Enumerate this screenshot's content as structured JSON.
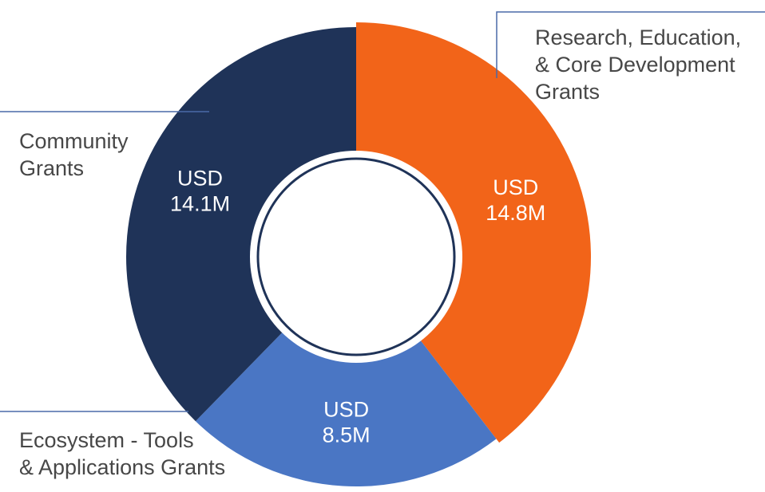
{
  "chart_data": {
    "type": "pie",
    "style": "donut",
    "unit": "USD",
    "categories": [
      "Research, Education, & Core Development Grants",
      "Ecosystem - Tools & Applications Grants",
      "Community Grants"
    ],
    "values": [
      14.8,
      8.5,
      14.1
    ],
    "value_labels": [
      [
        "USD",
        "14.8M"
      ],
      [
        "USD",
        "8.5M"
      ],
      [
        "USD",
        "14.1M"
      ]
    ],
    "category_label_lines": [
      [
        "Research, Education,",
        "& Core Development",
        "Grants"
      ],
      [
        "Ecosystem - Tools",
        "& Applications Grants"
      ],
      [
        "Community",
        "Grants"
      ]
    ],
    "colors": [
      "#f26419",
      "#4a76c4",
      "#1f3358"
    ],
    "leader_line_color": "#4a6aa8",
    "legend": "callout labels with leader lines"
  }
}
